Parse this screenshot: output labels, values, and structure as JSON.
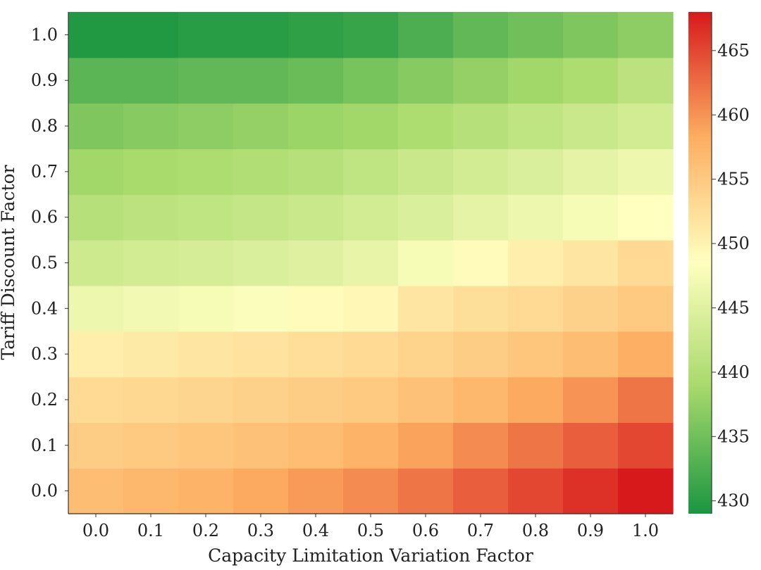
{
  "chart_data": {
    "type": "heatmap",
    "xlabel": "Capacity Limitation Variation Factor",
    "ylabel": "Tariff Discount Factor",
    "x_categories": [
      "0.0",
      "0.1",
      "0.2",
      "0.3",
      "0.4",
      "0.5",
      "0.6",
      "0.7",
      "0.8",
      "0.9",
      "1.0"
    ],
    "y_categories": [
      "0.0",
      "0.1",
      "0.2",
      "0.3",
      "0.4",
      "0.5",
      "0.6",
      "0.7",
      "0.8",
      "0.9",
      "1.0"
    ],
    "values": [
      [
        456.5,
        457.0,
        457.5,
        458.5,
        459.5,
        460.5,
        462.0,
        463.5,
        465.0,
        466.5,
        468.0
      ],
      [
        454.5,
        455.0,
        455.5,
        456.0,
        456.5,
        457.5,
        459.0,
        460.5,
        462.0,
        463.5,
        465.0
      ],
      [
        453.0,
        453.3,
        453.6,
        454.0,
        454.5,
        455.0,
        456.0,
        457.0,
        458.5,
        460.0,
        462.0
      ],
      [
        450.5,
        451.0,
        451.5,
        452.0,
        452.5,
        453.0,
        453.8,
        454.5,
        455.5,
        456.5,
        458.0
      ],
      [
        446.5,
        447.0,
        447.5,
        448.0,
        449.0,
        449.5,
        451.5,
        452.3,
        453.0,
        454.0,
        455.0
      ],
      [
        443.0,
        443.5,
        444.0,
        444.5,
        445.0,
        446.0,
        447.5,
        449.0,
        450.5,
        451.5,
        453.0
      ],
      [
        440.5,
        441.0,
        441.5,
        442.0,
        442.5,
        443.5,
        444.5,
        445.5,
        446.5,
        447.5,
        448.5
      ],
      [
        438.5,
        439.0,
        439.5,
        440.0,
        440.5,
        441.5,
        442.5,
        443.5,
        444.5,
        445.5,
        446.5
      ],
      [
        436.0,
        436.5,
        437.0,
        437.5,
        438.0,
        438.5,
        439.5,
        440.5,
        441.5,
        442.5,
        443.5
      ],
      [
        433.5,
        433.5,
        434.0,
        434.0,
        434.5,
        435.5,
        436.5,
        437.5,
        438.5,
        439.5,
        441.0
      ],
      [
        429.5,
        429.5,
        430.0,
        430.0,
        430.5,
        431.0,
        432.5,
        434.0,
        435.0,
        436.0,
        437.0
      ]
    ],
    "colorbar": {
      "min": 429,
      "max": 468,
      "ticks": [
        430,
        435,
        440,
        445,
        450,
        455,
        460,
        465
      ],
      "colormap": [
        "#1a9641",
        "#a6d96a",
        "#ffffbf",
        "#fdae61",
        "#d7191c"
      ]
    },
    "grid": false
  }
}
